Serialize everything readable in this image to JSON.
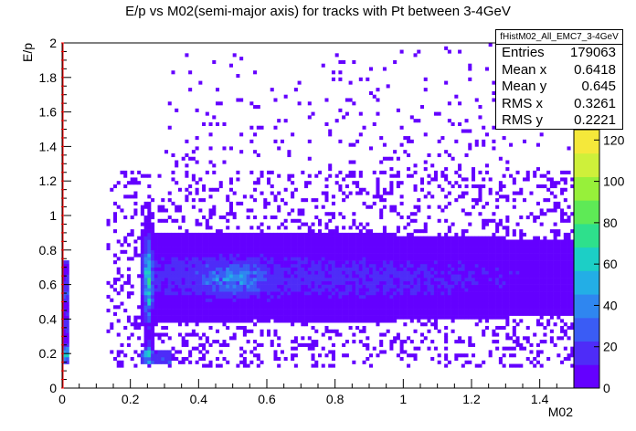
{
  "chart_data": {
    "type": "heatmap",
    "title": "E/p vs M02(semi-major axis) for tracks with Pt between 3-4GeV",
    "xlabel": "M02",
    "ylabel": "E/p",
    "xlim": [
      0,
      1.5
    ],
    "ylim": [
      0,
      2
    ],
    "x_ticks": [
      "0",
      "0.2",
      "0.4",
      "0.6",
      "0.8",
      "1",
      "1.2",
      "1.4"
    ],
    "x_tick_values": [
      0,
      0.2,
      0.4,
      0.6,
      0.8,
      1.0,
      1.2,
      1.4
    ],
    "y_ticks": [
      "0",
      "0.2",
      "0.4",
      "0.6",
      "0.8",
      "1",
      "1.2",
      "1.4",
      "1.6",
      "1.8",
      "2"
    ],
    "y_tick_values": [
      0,
      0.2,
      0.4,
      0.6,
      0.8,
      1.0,
      1.2,
      1.4,
      1.6,
      1.8,
      2.0
    ],
    "z_ticks": [
      "0",
      "20",
      "40",
      "60",
      "80",
      "100",
      "120"
    ],
    "z_tick_values": [
      0,
      20,
      40,
      60,
      80,
      100,
      120
    ],
    "zlim": [
      0,
      125
    ],
    "stats": {
      "name": "fHistM02_All_EMC7_3-4GeV",
      "rows": [
        {
          "label": "Entries",
          "value": "179063"
        },
        {
          "label": "Mean x",
          "value": "0.6418"
        },
        {
          "label": "Mean y",
          "value": "0.645"
        },
        {
          "label": "RMS x",
          "value": "0.3261"
        },
        {
          "label": "RMS y",
          "value": "0.2221"
        }
      ]
    },
    "hotspots": [
      {
        "x": 0.25,
        "y": 0.62,
        "value": 80
      },
      {
        "x": 0.255,
        "y": 0.2,
        "value": 50
      },
      {
        "x": 0.01,
        "y": 0.2,
        "value": 45
      },
      {
        "x": 0.01,
        "y": 0.55,
        "value": 20
      },
      {
        "x": 0.5,
        "y": 0.64,
        "value": 40
      }
    ],
    "palette": [
      "#6400ff",
      "#4e2cf8",
      "#3a5cf5",
      "#2f86f0",
      "#23aee6",
      "#1ccfc6",
      "#2ee08c",
      "#5eea56",
      "#97f03a",
      "#cef03a",
      "#f5e83a"
    ]
  }
}
